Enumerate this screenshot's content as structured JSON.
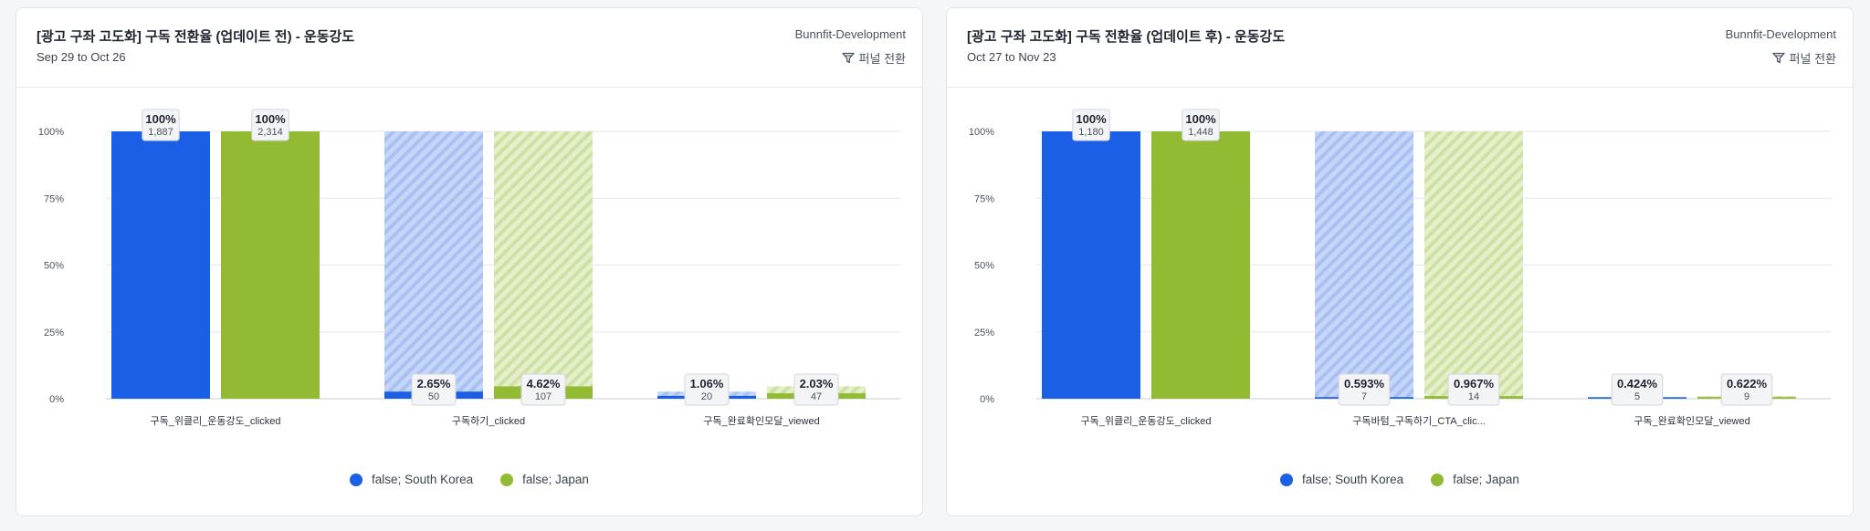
{
  "colors": {
    "series1": "#1b5fe6",
    "series2": "#93ba33",
    "series1_hatch_bg": "#c6d6f8",
    "series2_hatch_bg": "#e4efcc",
    "series1_hatch_line": "#a8c0f2",
    "series2_hatch_line": "#cfe0a2"
  },
  "icons": {
    "funnel_type": "funnel-icon"
  },
  "cards": [
    {
      "title": "[광고 구좌 고도화] 구독 전환율 (업데이트 전) - 운동강도",
      "subtitle": "Sep 29 to Oct 26",
      "project": "Bunnfit-Development",
      "funnel_type_label": "퍼널 전환"
    },
    {
      "title": "[광고 구좌 고도화] 구독 전환율 (업데이트 후) - 운동강도",
      "subtitle": "Oct 27 to Nov 23",
      "project": "Bunnfit-Development",
      "funnel_type_label": "퍼널 전환"
    }
  ],
  "chart_data": [
    {
      "type": "bar",
      "categories": [
        "구독_위클리_운동강도_clicked",
        "구독하기_clicked",
        "구독_완료확인모달_viewed"
      ],
      "series": [
        {
          "name": "false; South Korea",
          "values": [
            100,
            2.65,
            1.06
          ],
          "counts": [
            "1,887",
            "50",
            "20"
          ],
          "labels": [
            "100%",
            "2.65%",
            "1.06%"
          ]
        },
        {
          "name": "false; Japan",
          "values": [
            100,
            4.62,
            2.03
          ],
          "counts": [
            "2,314",
            "107",
            "47"
          ],
          "labels": [
            "100%",
            "4.62%",
            "2.03%"
          ]
        }
      ],
      "y_ticks": [
        "100%",
        "75%",
        "50%",
        "25%",
        "0%"
      ],
      "ylim": [
        0,
        100
      ],
      "grid": true,
      "legend": "bottom-center"
    },
    {
      "type": "bar",
      "categories": [
        "구독_위클리_운동강도_clicked",
        "구독바텀_구독하기_CTA_clic...",
        "구독_완료확인모달_viewed"
      ],
      "series": [
        {
          "name": "false; South Korea",
          "values": [
            100,
            0.593,
            0.424
          ],
          "counts": [
            "1,180",
            "7",
            "5"
          ],
          "labels": [
            "100%",
            "0.593%",
            "0.424%"
          ]
        },
        {
          "name": "false; Japan",
          "values": [
            100,
            0.967,
            0.622
          ],
          "counts": [
            "1,448",
            "14",
            "9"
          ],
          "labels": [
            "100%",
            "0.967%",
            "0.622%"
          ]
        }
      ],
      "y_ticks": [
        "100%",
        "75%",
        "50%",
        "25%",
        "0%"
      ],
      "ylim": [
        0,
        100
      ],
      "grid": true,
      "legend": "bottom-center"
    }
  ]
}
